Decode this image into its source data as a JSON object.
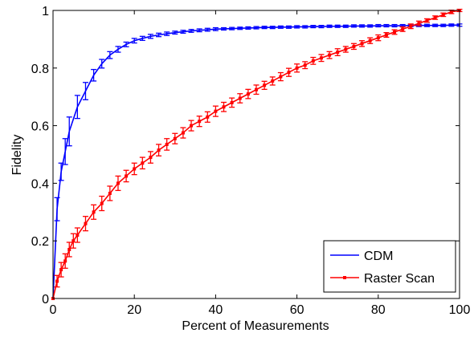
{
  "chart_data": {
    "type": "line",
    "xlabel": "Percent of Measurements",
    "ylabel": "Fidelity",
    "xlim": [
      0,
      100
    ],
    "ylim": [
      0,
      1
    ],
    "xticks": [
      0,
      20,
      40,
      60,
      80,
      100
    ],
    "yticks": [
      0,
      0.2,
      0.4,
      0.6,
      0.8,
      1
    ],
    "x_tick_labels": [
      "0",
      "20",
      "40",
      "60",
      "80",
      "100"
    ],
    "y_tick_labels": [
      "0",
      "0.2",
      "0.4",
      "0.6",
      "0.8",
      "1"
    ],
    "grid": false,
    "legend_position": "bottom-right",
    "series": [
      {
        "name": "CDM",
        "color": "#0000ff",
        "marker": "none",
        "x": [
          0,
          1,
          2,
          3,
          4,
          6,
          8,
          10,
          12,
          14,
          16,
          18,
          20,
          22,
          24,
          26,
          28,
          30,
          32,
          34,
          36,
          38,
          40,
          42,
          44,
          46,
          48,
          50,
          52,
          54,
          56,
          58,
          60,
          62,
          64,
          66,
          68,
          70,
          72,
          74,
          76,
          78,
          80,
          82,
          84,
          86,
          88,
          90,
          92,
          94,
          96,
          98,
          100
        ],
        "y": [
          0,
          0.31,
          0.44,
          0.51,
          0.58,
          0.665,
          0.72,
          0.775,
          0.815,
          0.845,
          0.865,
          0.882,
          0.895,
          0.903,
          0.91,
          0.915,
          0.919,
          0.923,
          0.926,
          0.929,
          0.931,
          0.933,
          0.935,
          0.936,
          0.937,
          0.938,
          0.939,
          0.94,
          0.941,
          0.941,
          0.942,
          0.942,
          0.943,
          0.943,
          0.944,
          0.944,
          0.945,
          0.945,
          0.945,
          0.946,
          0.946,
          0.946,
          0.947,
          0.947,
          0.947,
          0.947,
          0.948,
          0.948,
          0.948,
          0.948,
          0.948,
          0.949,
          0.949
        ],
        "error": [
          0,
          0.04,
          0.03,
          0.045,
          0.05,
          0.04,
          0.03,
          0.02,
          0.015,
          0.012,
          0.01,
          0.008,
          0.008,
          0.007,
          0.007,
          0.006,
          0.006,
          0.005,
          0.005,
          0.005,
          0.005,
          0.005,
          0.005,
          0.004,
          0.004,
          0.004,
          0.004,
          0.004,
          0.004,
          0.004,
          0.004,
          0.004,
          0.004,
          0.004,
          0.004,
          0.004,
          0.004,
          0.004,
          0.004,
          0.004,
          0.004,
          0.004,
          0.004,
          0.004,
          0.004,
          0.004,
          0.004,
          0.004,
          0.004,
          0.004,
          0.004,
          0.004,
          0.004
        ]
      },
      {
        "name": "Raster Scan",
        "color": "#ff0000",
        "marker": "square",
        "x": [
          0,
          1,
          2,
          3,
          4,
          5,
          6,
          8,
          10,
          12,
          14,
          16,
          18,
          20,
          22,
          24,
          26,
          28,
          30,
          32,
          34,
          36,
          38,
          40,
          42,
          44,
          46,
          48,
          50,
          52,
          54,
          56,
          58,
          60,
          62,
          64,
          66,
          68,
          70,
          72,
          74,
          76,
          78,
          80,
          82,
          84,
          86,
          88,
          90,
          92,
          94,
          96,
          98,
          100
        ],
        "y": [
          0,
          0.06,
          0.1,
          0.13,
          0.17,
          0.2,
          0.22,
          0.26,
          0.3,
          0.33,
          0.365,
          0.4,
          0.425,
          0.45,
          0.47,
          0.49,
          0.515,
          0.535,
          0.555,
          0.575,
          0.6,
          0.615,
          0.63,
          0.65,
          0.665,
          0.68,
          0.695,
          0.71,
          0.725,
          0.74,
          0.755,
          0.77,
          0.785,
          0.8,
          0.81,
          0.825,
          0.835,
          0.845,
          0.855,
          0.865,
          0.875,
          0.885,
          0.895,
          0.905,
          0.915,
          0.925,
          0.935,
          0.945,
          0.955,
          0.965,
          0.975,
          0.985,
          0.995,
          1.0
        ],
        "error": [
          0,
          0.02,
          0.025,
          0.025,
          0.025,
          0.025,
          0.025,
          0.025,
          0.025,
          0.025,
          0.025,
          0.025,
          0.02,
          0.02,
          0.02,
          0.02,
          0.02,
          0.02,
          0.018,
          0.018,
          0.018,
          0.018,
          0.018,
          0.018,
          0.016,
          0.016,
          0.016,
          0.016,
          0.016,
          0.014,
          0.014,
          0.014,
          0.014,
          0.014,
          0.012,
          0.012,
          0.012,
          0.012,
          0.012,
          0.01,
          0.01,
          0.01,
          0.01,
          0.01,
          0.008,
          0.008,
          0.008,
          0.008,
          0.008,
          0.006,
          0.006,
          0.006,
          0.006,
          0.004
        ]
      }
    ]
  }
}
